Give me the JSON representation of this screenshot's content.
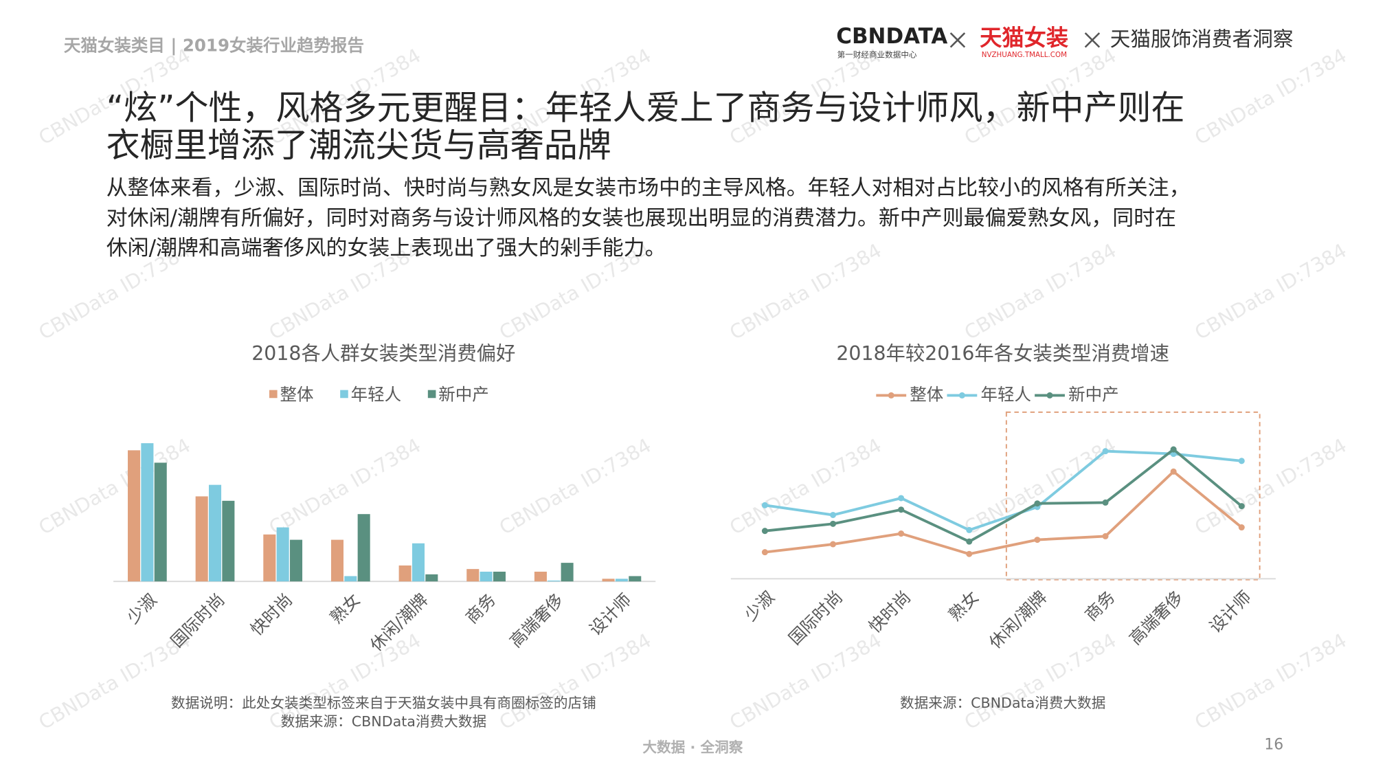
{
  "header": {
    "report": "天猫女装类目 | 2019女装行业趋势报告",
    "logo_cbn": "CBNDATA",
    "logo_cbn_sub": "第一财经商业数据中心",
    "logo_tmall": "天猫女装",
    "logo_tmall_sub": "NVZHUANG.TMALL.COM",
    "partner": "天猫服饰消费者洞察"
  },
  "title": [
    "“炫”个性，风格多元更醒目：年轻人爱上了商务与设计师风，新中产则在",
    "衣橱里增添了潮流尖货与高奢品牌"
  ],
  "body": [
    "从整体来看，少淑、国际时尚、快时尚与熟女风是女装市场中的主导风格。年轻人对相对占比较小的风格有所关注，",
    "对休闲/潮牌有所偏好，同时对商务与设计师风格的女装也展现出明显的消费潜力。新中产则最偏爱熟女风，同时在",
    "休闲/潮牌和高端奢侈风的女装上表现出了强大的剁手能力。"
  ],
  "watermark": "CBNData ID:7384",
  "footer": {
    "slogan": "大数据 · 全洞察",
    "page": "16"
  },
  "chart_data": [
    {
      "type": "bar",
      "title": "2018各人群女装类型消费偏好",
      "categories": [
        "少淑",
        "国际时尚",
        "快时尚",
        "熟女",
        "休闲/潮牌",
        "商务",
        "高端奢侈",
        "设计师"
      ],
      "series": [
        {
          "name": "整体",
          "color": "#e0a07c",
          "values": [
            148,
            96,
            53,
            47,
            18,
            14,
            11,
            3
          ]
        },
        {
          "name": "年轻人",
          "color": "#7ecbe0",
          "values": [
            156,
            109,
            61,
            6,
            43,
            11,
            1,
            3
          ]
        },
        {
          "name": "新中产",
          "color": "#5a9080",
          "values": [
            134,
            91,
            47,
            76,
            8,
            11,
            21,
            6
          ]
        }
      ],
      "ylim": [
        0,
        160
      ],
      "notes": [
        "数据说明：此处女装类型标签来自于天猫女装中具有商圈标签的店铺",
        "数据来源：CBNData消费大数据"
      ]
    },
    {
      "type": "line",
      "title": "2018年较2016年各女装类型消费增速",
      "categories": [
        "少淑",
        "国际时尚",
        "快时尚",
        "熟女",
        "休闲/潮牌",
        "商务",
        "高端奢侈",
        "设计师"
      ],
      "series": [
        {
          "name": "整体",
          "color": "#e0a07c",
          "values": [
            30,
            39,
            51,
            28,
            44,
            48,
            121,
            58
          ]
        },
        {
          "name": "年轻人",
          "color": "#7ecbe0",
          "values": [
            83,
            72,
            91,
            55,
            81,
            144,
            141,
            133
          ]
        },
        {
          "name": "新中产",
          "color": "#5a9080",
          "values": [
            54,
            62,
            78,
            42,
            85,
            86,
            146,
            82
          ]
        }
      ],
      "ylim": [
        0,
        160
      ],
      "notes": [
        "数据来源：CBNData消费大数据"
      ]
    }
  ]
}
